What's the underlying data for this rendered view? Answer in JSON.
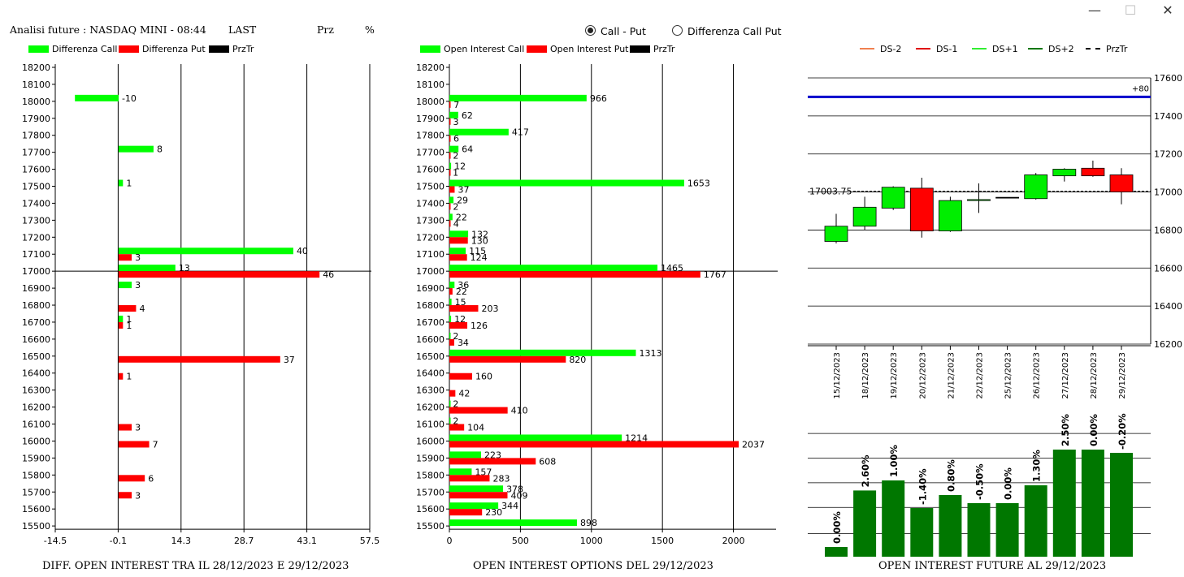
{
  "window": {
    "minimize": "—",
    "maximize": "☐",
    "close": "✕"
  },
  "header": {
    "title": "Analisi future : NASDAQ MINI - 08:44",
    "last_label": "LAST",
    "prz_label": "Prz",
    "pct_label": "%"
  },
  "options": {
    "call_put": "Call - Put",
    "diff_call_put": "Differenza Call Put",
    "selected": "call_put"
  },
  "panel1": {
    "legend": [
      {
        "label": "Differenza Call",
        "color": "#00ff00"
      },
      {
        "label": "Differenza Put",
        "color": "#ff0000"
      },
      {
        "label": "PrzTr",
        "color": "#000000"
      }
    ],
    "caption": "DIFF. OPEN INTEREST TRA IL 28/12/2023 E 29/12/2023"
  },
  "panel2": {
    "legend": [
      {
        "label": "Open Interest Call",
        "color": "#00ff00"
      },
      {
        "label": "Open Interest Put",
        "color": "#ff0000"
      },
      {
        "label": "PrzTr",
        "color": "#000000"
      }
    ],
    "caption": "OPEN INTEREST OPTIONS DEL 29/12/2023"
  },
  "panel3": {
    "legend": [
      {
        "label": "DS-2",
        "color": "#f08050",
        "style": "solid"
      },
      {
        "label": "DS-1",
        "color": "#e00000",
        "style": "solid"
      },
      {
        "label": "DS+1",
        "color": "#33ee33",
        "style": "solid"
      },
      {
        "label": "DS+2",
        "color": "#007700",
        "style": "solid"
      },
      {
        "label": "PrzTr",
        "color": "#000000",
        "style": "dashed"
      }
    ],
    "caption": "OPEN INTEREST FUTURE AL 29/12/2023"
  },
  "chart_data": [
    {
      "type": "bar",
      "orientation": "horizontal",
      "categories": [
        "18200",
        "18100",
        "18000",
        "17900",
        "17800",
        "17700",
        "17600",
        "17500",
        "17400",
        "17300",
        "17200",
        "17100",
        "17000",
        "16900",
        "16800",
        "16700",
        "16600",
        "16500",
        "16400",
        "16300",
        "16200",
        "16100",
        "16000",
        "15900",
        "15800",
        "15700",
        "15600",
        "15500"
      ],
      "series": [
        {
          "name": "Differenza Call",
          "color": "#00ff00",
          "values": [
            null,
            null,
            -10,
            null,
            null,
            8,
            null,
            1,
            null,
            null,
            null,
            40,
            13,
            3,
            null,
            1,
            null,
            null,
            null,
            null,
            null,
            null,
            null,
            null,
            null,
            null,
            null,
            null
          ]
        },
        {
          "name": "Differenza Put",
          "color": "#ff0000",
          "values": [
            null,
            null,
            null,
            null,
            null,
            null,
            null,
            null,
            null,
            null,
            null,
            3,
            46,
            null,
            4,
            1,
            null,
            37,
            1,
            null,
            null,
            3,
            7,
            null,
            6,
            3,
            null,
            null
          ]
        }
      ],
      "x_ticks": [
        "-14.5",
        "-0.1",
        "14.3",
        "28.7",
        "43.1",
        "57.5"
      ],
      "xlim": [
        -14.5,
        57.5
      ],
      "prztr": "17000",
      "grid": "vertical"
    },
    {
      "type": "bar",
      "orientation": "horizontal",
      "categories": [
        "18200",
        "18100",
        "18000",
        "17900",
        "17800",
        "17700",
        "17600",
        "17500",
        "17400",
        "17300",
        "17200",
        "17100",
        "17000",
        "16900",
        "16800",
        "16700",
        "16600",
        "16500",
        "16400",
        "16300",
        "16200",
        "16100",
        "16000",
        "15900",
        "15800",
        "15700",
        "15600",
        "15500"
      ],
      "series": [
        {
          "name": "Open Interest Call",
          "color": "#00ff00",
          "values": [
            null,
            null,
            966,
            62,
            417,
            64,
            12,
            1653,
            29,
            22,
            132,
            115,
            1465,
            36,
            15,
            12,
            2,
            1313,
            null,
            null,
            2,
            2,
            1214,
            223,
            157,
            378,
            344,
            898
          ]
        },
        {
          "name": "Open Interest Put",
          "color": "#ff0000",
          "values": [
            null,
            null,
            7,
            3,
            6,
            2,
            1,
            37,
            2,
            4,
            130,
            124,
            1767,
            22,
            203,
            126,
            34,
            820,
            160,
            42,
            410,
            104,
            2037,
            608,
            283,
            409,
            230,
            null
          ]
        }
      ],
      "x_ticks": [
        "0",
        "500",
        "1000",
        "1500",
        "2000"
      ],
      "xlim": [
        0,
        2300
      ],
      "prztr": "17000",
      "grid": "vertical"
    },
    {
      "type": "candlestick",
      "dates": [
        "15/12/2023",
        "18/12/2023",
        "19/12/2023",
        "20/12/2023",
        "21/12/2023",
        "22/12/2023",
        "25/12/2023",
        "26/12/2023",
        "27/12/2023",
        "28/12/2023",
        "29/12/2023"
      ],
      "candles": [
        {
          "open": 16740,
          "close": 16820,
          "high": 16885,
          "low": 16730
        },
        {
          "open": 16820,
          "close": 16920,
          "high": 16975,
          "low": 16800
        },
        {
          "open": 16915,
          "close": 17025,
          "high": 17030,
          "low": 16905
        },
        {
          "open": 17020,
          "close": 16795,
          "high": 17075,
          "low": 16760
        },
        {
          "open": 16795,
          "close": 16955,
          "high": 16975,
          "low": 16790
        },
        {
          "open": 16955,
          "close": 16960,
          "high": 17045,
          "low": 16890
        },
        {
          "open": 16972,
          "close": 16972,
          "high": 16972,
          "low": 16972
        },
        {
          "open": 16965,
          "close": 17090,
          "high": 17100,
          "low": 16960
        },
        {
          "open": 17085,
          "close": 17120,
          "high": 17125,
          "low": 17055
        },
        {
          "open": 17125,
          "close": 17085,
          "high": 17165,
          "low": 17080
        },
        {
          "open": 17090,
          "close": 17000,
          "high": 17125,
          "low": 16935
        }
      ],
      "y_ticks": [
        "17600",
        "17400",
        "17200",
        "17000",
        "16800",
        "16600",
        "16400",
        "16200"
      ],
      "ylim": [
        16200,
        17600
      ],
      "last_price": 17003.75,
      "last_price_label": "17003.75",
      "blue_line": 17500,
      "blue_line_label": "+80"
    },
    {
      "type": "bar",
      "categories": [
        "15/12/2023",
        "18/12/2023",
        "19/12/2023",
        "20/12/2023",
        "21/12/2023",
        "22/12/2023",
        "25/12/2023",
        "26/12/2023",
        "27/12/2023",
        "28/12/2023",
        "29/12/2023"
      ],
      "values": [
        0.3,
        2.04,
        2.35,
        1.5,
        1.9,
        1.65,
        1.65,
        2.2,
        3.3,
        3.3,
        3.2
      ],
      "labels": [
        "0.00%",
        "2.60%",
        "1.00%",
        "-1.40%",
        "0.80%",
        "-0.50%",
        "0.00%",
        "1.30%",
        "2.50%",
        "0.00%",
        "-0.20%"
      ],
      "color": "#007700",
      "ylim": [
        0,
        3.6
      ],
      "grid": "horizontal"
    }
  ]
}
